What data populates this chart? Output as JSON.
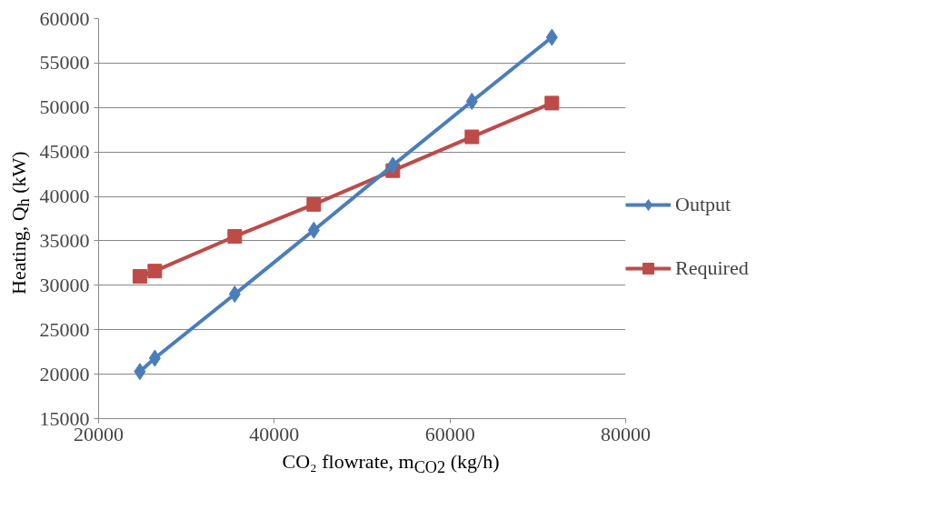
{
  "chart_data": {
    "type": "line",
    "xlabel": "CO₂ flowrate, m$_{CO2}$ (kg/h)",
    "ylabel": "Heating, Q$_{h}$ (kW)",
    "x": [
      24700,
      26400,
      35500,
      44500,
      53500,
      62500,
      71600
    ],
    "series": [
      {
        "name": "Output",
        "color": "#4a7ebb",
        "marker": "diamond",
        "values": [
          20300,
          21800,
          29000,
          36200,
          43500,
          50700,
          57900
        ]
      },
      {
        "name": "Required",
        "color": "#be4b48",
        "marker": "square",
        "values": [
          31000,
          31600,
          35500,
          39100,
          42900,
          46700,
          50500
        ]
      }
    ],
    "xlim": [
      20000,
      80000
    ],
    "xticks": [
      20000,
      40000,
      60000,
      80000
    ],
    "ylim": [
      15000,
      60000
    ],
    "yticks": [
      15000,
      20000,
      25000,
      30000,
      35000,
      40000,
      45000,
      50000,
      55000,
      60000
    ],
    "grid": "y",
    "legend": "right",
    "line_style": "solid"
  }
}
